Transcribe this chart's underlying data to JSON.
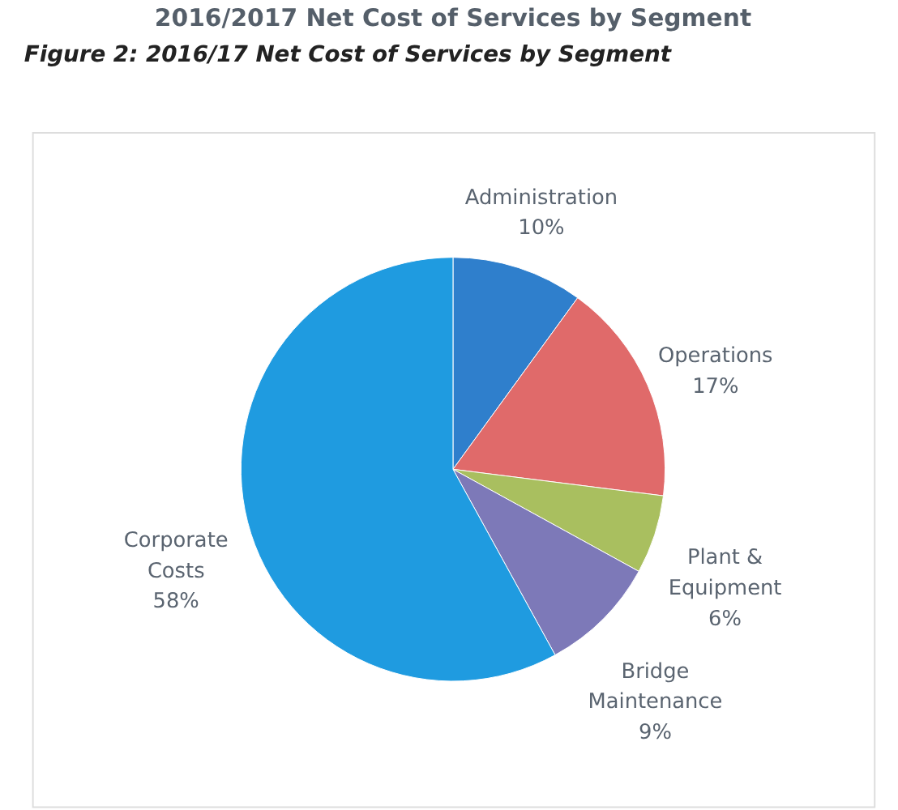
{
  "chart_data": {
    "type": "pie",
    "title": "2016/2017 Net Cost of Services by Segment",
    "annotations": [
      "Figure 2: 2016/17 Net Cost of Services by Segment"
    ],
    "categories": [
      "Administration",
      "Operations",
      "Plant & Equipment",
      "Bridge Maintenance",
      "Corporate Costs"
    ],
    "values": [
      10,
      17,
      6,
      9,
      58
    ],
    "value_labels": [
      "10%",
      "17%",
      "6%",
      "9%",
      "58%"
    ],
    "colors": [
      "#2f7fcc",
      "#e06a6a",
      "#a9bf5f",
      "#7d79b8",
      "#1f9be0"
    ],
    "legend": false
  }
}
